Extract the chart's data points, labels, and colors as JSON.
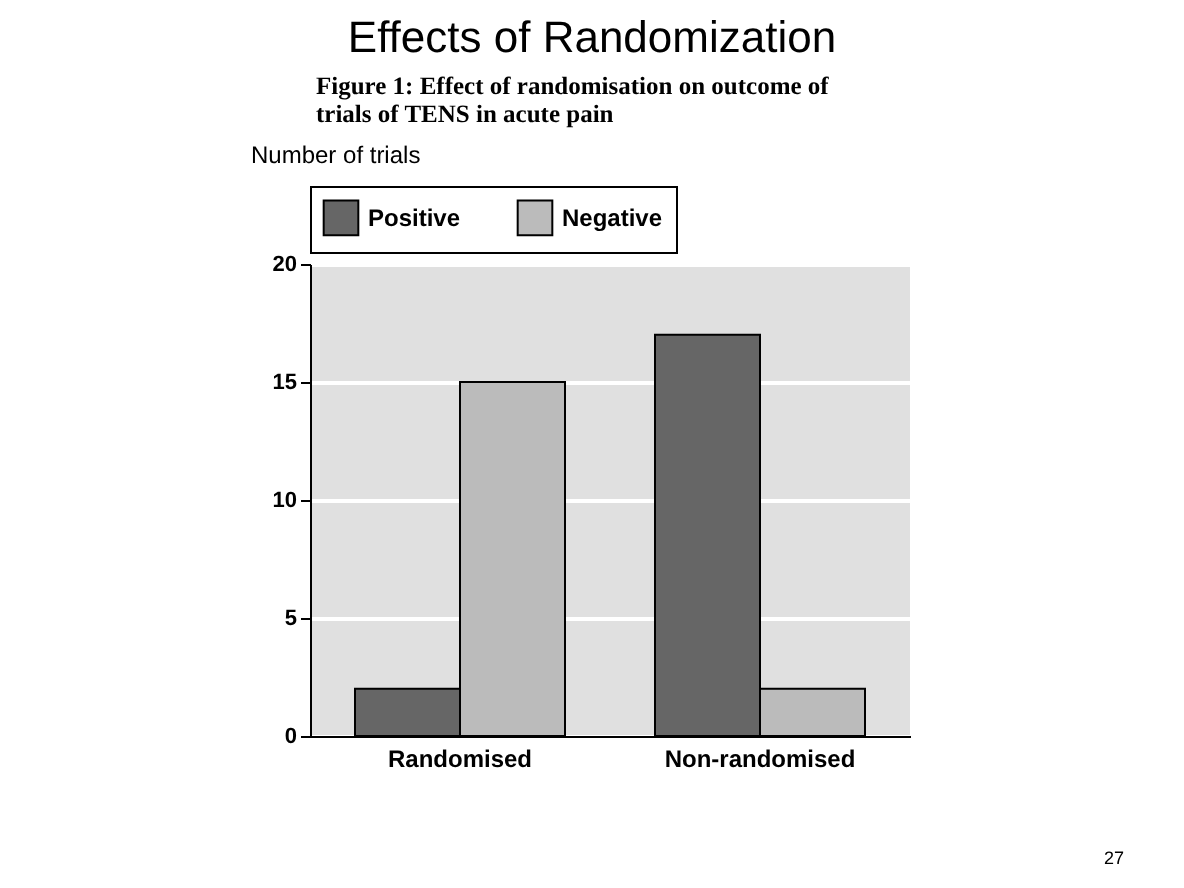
{
  "chart_data": {
    "type": "bar",
    "title": "Effects of Randomization",
    "subtitle": "Figure 1: Effect of randomisation on outcome of trials of TENS in acute pain",
    "ylabel": "Number of trials",
    "categories": [
      "Randomised",
      "Non-randomised"
    ],
    "series": [
      {
        "name": "Positive",
        "color": "#666666",
        "values": [
          2,
          17
        ]
      },
      {
        "name": "Negative",
        "color": "#bbbbbb",
        "values": [
          15,
          2
        ]
      }
    ],
    "ylim": [
      0,
      20
    ],
    "yticks": [
      0,
      5,
      10,
      15,
      20
    ],
    "grid": "y",
    "legend": "top",
    "annotations": [
      "27"
    ]
  }
}
